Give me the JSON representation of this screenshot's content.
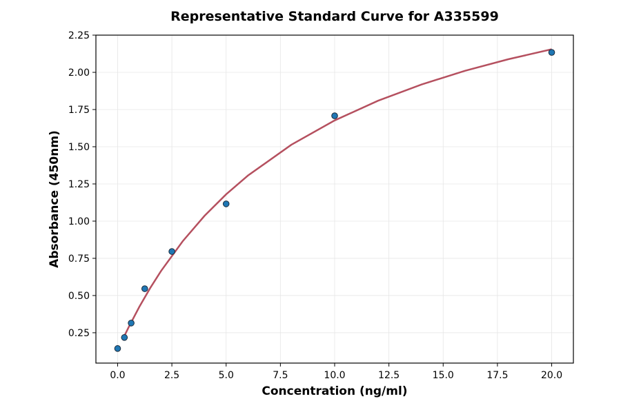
{
  "chart_data": {
    "type": "scatter",
    "title": "Representative Standard Curve for A335599",
    "xlabel": "Concentration (ng/ml)",
    "ylabel": "Absorbance (450nm)",
    "xlim": [
      -1,
      21
    ],
    "ylim": [
      0.046,
      2.25
    ],
    "xticks": [
      "0.0",
      "2.5",
      "5.0",
      "7.5",
      "10.0",
      "12.5",
      "15.0",
      "17.5",
      "20.0"
    ],
    "yticks": [
      "0.25",
      "0.50",
      "0.75",
      "1.00",
      "1.25",
      "1.50",
      "1.75",
      "2.00",
      "2.25"
    ],
    "grid": true,
    "points": {
      "x": [
        0,
        0.3125,
        0.625,
        1.25,
        2.5,
        5,
        10,
        20
      ],
      "y": [
        0.144,
        0.218,
        0.315,
        0.546,
        0.796,
        1.116,
        1.708,
        2.134
      ]
    },
    "fit_curve": {
      "x": [
        0.3,
        0.5,
        1,
        1.5,
        2,
        3,
        4,
        5,
        6,
        8,
        10,
        12,
        14,
        16,
        18,
        20
      ],
      "y": [
        0.225,
        0.285,
        0.424,
        0.55,
        0.665,
        0.865,
        1.035,
        1.18,
        1.306,
        1.513,
        1.677,
        1.809,
        1.918,
        2.01,
        2.088,
        2.155
      ]
    },
    "colors": {
      "points": "#1f77b4",
      "point_edge": "#1a2a3a",
      "curve": "#b5505f",
      "grid": "#e6e6e6"
    }
  }
}
